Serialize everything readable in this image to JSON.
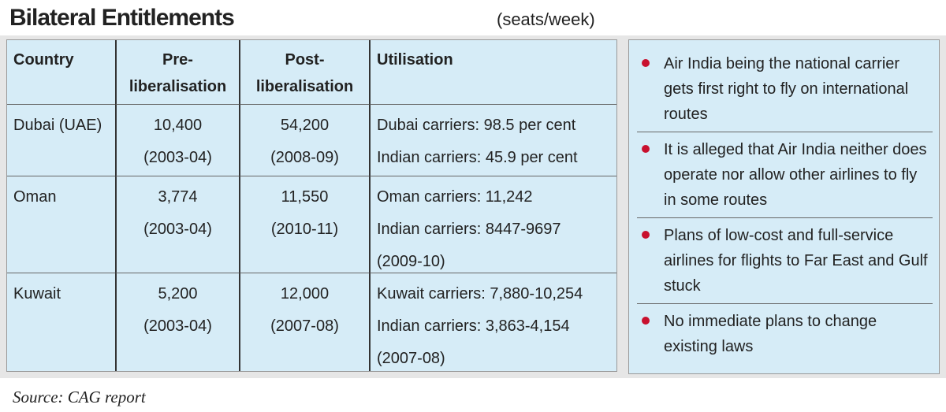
{
  "header": {
    "title": "Bilateral Entitlements",
    "unit": "(seats/week)"
  },
  "table": {
    "columns": [
      "Country",
      "Pre-liberalisation",
      "Post-liberalisation",
      "Utilisation"
    ],
    "rows": [
      [
        [
          "Dubai (UAE)"
        ],
        [
          "10,400",
          "(2003-04)"
        ],
        [
          "54,200",
          "(2008-09)"
        ],
        [
          "Dubai carriers: 98.5 per cent",
          "Indian carriers: 45.9 per cent"
        ]
      ],
      [
        [
          "Oman"
        ],
        [
          "3,774",
          "(2003-04)"
        ],
        [
          "11,550",
          "(2010-11)"
        ],
        [
          "Oman carriers: 11,242",
          "Indian carriers: 8447-9697",
          "(2009-10)"
        ]
      ],
      [
        [
          "Kuwait"
        ],
        [
          "5,200",
          "(2003-04)"
        ],
        [
          "12,000",
          "(2007-08)"
        ],
        [
          "Kuwait carriers: 7,880-10,254",
          "Indian carriers: 3,863-4,154",
          "(2007-08)"
        ]
      ]
    ]
  },
  "notes": [
    "Air India being the national carrier gets first right to fly on international routes",
    "It is alleged that Air India neither does operate nor allow other airlines to fly in some routes",
    "Plans of low-cost and full-service airlines for flights to Far East and Gulf stuck",
    "No immediate plans to change existing laws"
  ],
  "source": "Source: CAG report"
}
